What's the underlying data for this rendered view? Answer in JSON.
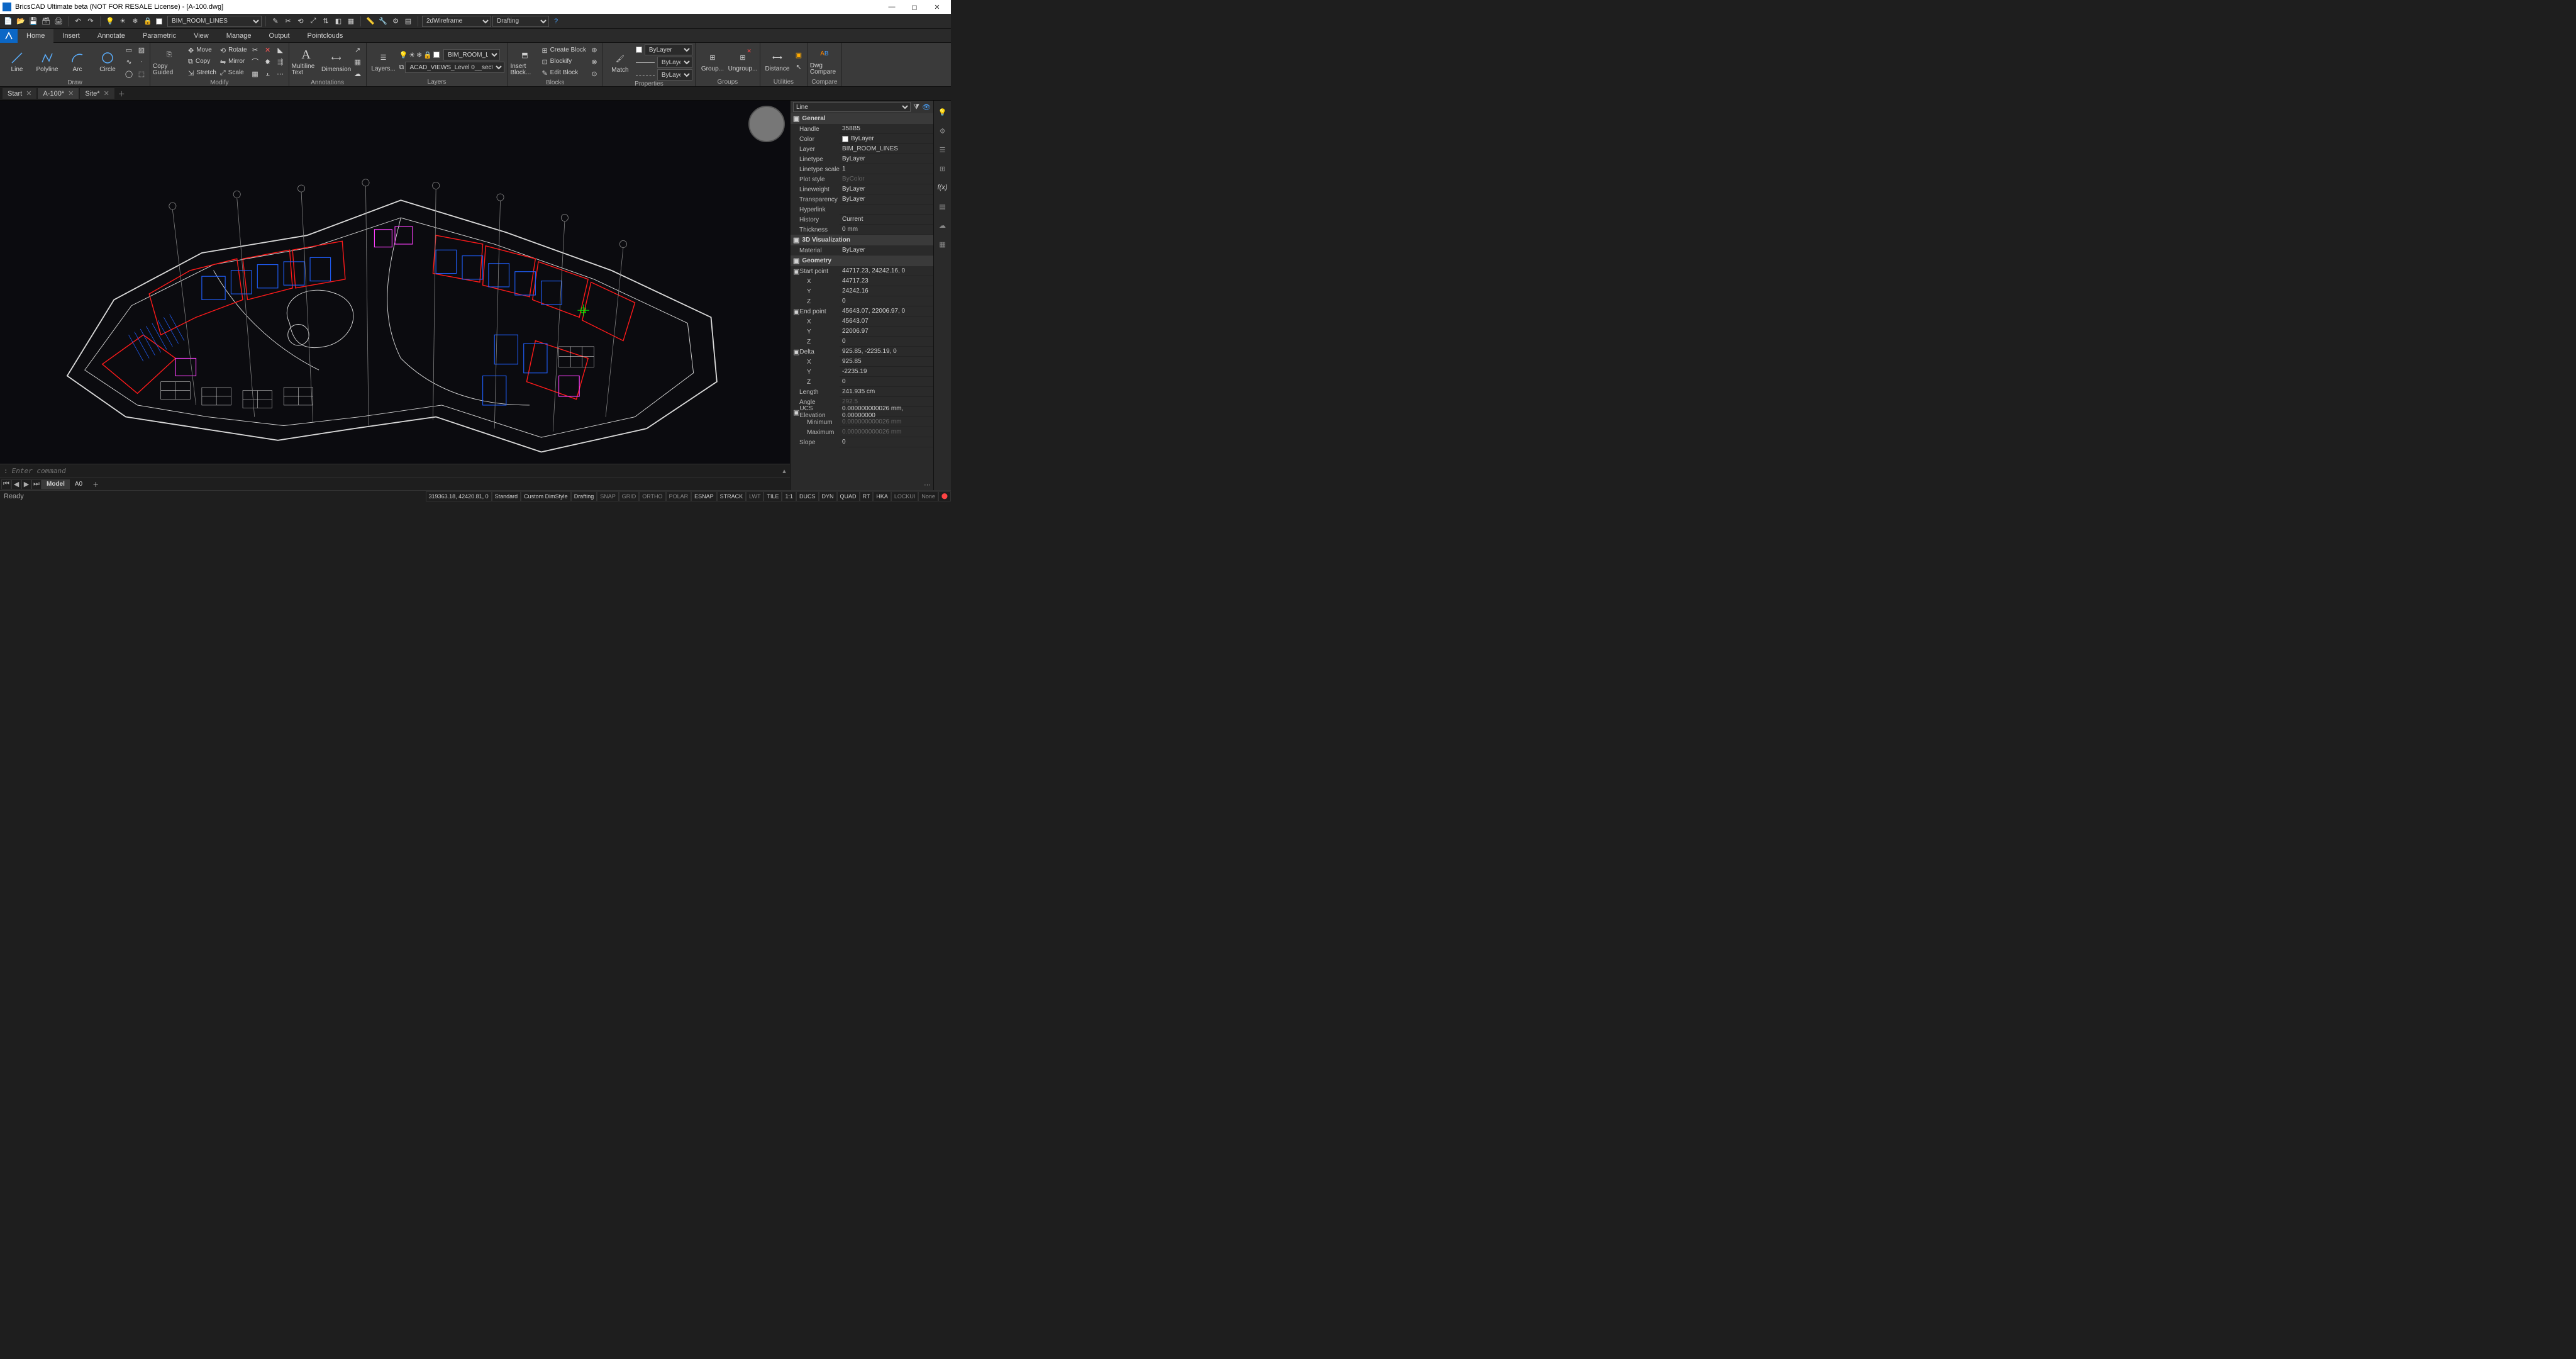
{
  "title": "BricsCAD Ultimate beta (NOT FOR RESALE License) - [A-100.dwg]",
  "qat": {
    "layer_dropdown": "BIM_ROOM_LINES",
    "visual_style": "2dWireframe",
    "workspace": "Drafting"
  },
  "menubar": {
    "tabs": [
      "Home",
      "Insert",
      "Annotate",
      "Parametric",
      "View",
      "Manage",
      "Output",
      "Pointclouds"
    ],
    "active": 0
  },
  "ribbon": {
    "draw": {
      "label": "Draw",
      "line": "Line",
      "polyline": "Polyline",
      "arc": "Arc",
      "circle": "Circle"
    },
    "modify": {
      "label": "Modify",
      "copy": "Copy Guided",
      "move": "Move",
      "rotate": "Rotate",
      "copy2": "Copy",
      "mirror": "Mirror",
      "stretch": "Stretch",
      "scale": "Scale"
    },
    "annot": {
      "label": "Annotations",
      "mtext": "Multiline Text",
      "dim": "Dimension"
    },
    "layers": {
      "label": "Layers",
      "btn": "Layers...",
      "combo1": "BIM_ROOM_L...",
      "combo2": "ACAD_VIEWS_Level 0__secti..."
    },
    "blocks": {
      "label": "Blocks",
      "insert": "Insert Block...",
      "create": "Create Block",
      "blockify": "Blockify",
      "edit": "Edit Block"
    },
    "props": {
      "label": "Properties",
      "match": "Match",
      "bylayer": "ByLayer"
    },
    "groups": {
      "label": "Groups",
      "group": "Group...",
      "ungroup": "Ungroup..."
    },
    "utils": {
      "label": "Utilities",
      "dist": "Distance"
    },
    "compare": {
      "label": "Compare",
      "dwg": "Dwg Compare"
    }
  },
  "doc_tabs": [
    {
      "label": "Start",
      "closable": true,
      "active": false
    },
    {
      "label": "A-100*",
      "closable": true,
      "active": true
    },
    {
      "label": "Site*",
      "closable": true,
      "active": false
    }
  ],
  "cmdline": {
    "prompt": ":",
    "placeholder": "Enter command"
  },
  "layout_tabs": {
    "active": "Model",
    "tabs": [
      "Model",
      "A0"
    ]
  },
  "properties": {
    "type": "Line",
    "sections": [
      {
        "title": "General",
        "rows": [
          {
            "k": "Handle",
            "v": "358B5"
          },
          {
            "k": "Color",
            "v": "ByLayer",
            "swatch": "#ffffff"
          },
          {
            "k": "Layer",
            "v": "BIM_ROOM_LINES"
          },
          {
            "k": "Linetype",
            "v": "ByLayer"
          },
          {
            "k": "Linetype scale",
            "v": "1"
          },
          {
            "k": "Plot style",
            "v": "ByColor",
            "dim": true
          },
          {
            "k": "Lineweight",
            "v": "ByLayer"
          },
          {
            "k": "Transparency",
            "v": "ByLayer"
          },
          {
            "k": "Hyperlink",
            "v": ""
          },
          {
            "k": "History",
            "v": "Current"
          },
          {
            "k": "Thickness",
            "v": "0 mm"
          }
        ]
      },
      {
        "title": "3D Visualization",
        "rows": [
          {
            "k": "Material",
            "v": "ByLayer"
          }
        ]
      },
      {
        "title": "Geometry",
        "rows": [
          {
            "k": "Start point",
            "v": "44717.23, 24242.16, 0",
            "bold": true
          },
          {
            "k": "X",
            "v": "44717.23",
            "indent": true
          },
          {
            "k": "Y",
            "v": "24242.16",
            "indent": true
          },
          {
            "k": "Z",
            "v": "0",
            "indent": true
          },
          {
            "k": "End point",
            "v": "45643.07, 22006.97, 0",
            "bold": true
          },
          {
            "k": "X",
            "v": "45643.07",
            "indent": true
          },
          {
            "k": "Y",
            "v": "22006.97",
            "indent": true
          },
          {
            "k": "Z",
            "v": "0",
            "indent": true
          },
          {
            "k": "Delta",
            "v": "925.85, -2235.19, 0",
            "bold": true
          },
          {
            "k": "X",
            "v": "925.85",
            "indent": true
          },
          {
            "k": "Y",
            "v": "-2235.19",
            "indent": true
          },
          {
            "k": "Z",
            "v": "0",
            "indent": true
          },
          {
            "k": "Length",
            "v": "241.935 cm"
          },
          {
            "k": "Angle",
            "v": "292.5",
            "dim": true
          },
          {
            "k": "UCS Elevation",
            "v": "0.000000000026 mm, 0.00000000",
            "bold": true
          },
          {
            "k": "Minimum",
            "v": "0.000000000026 mm",
            "indent": true,
            "dim": true
          },
          {
            "k": "Maximum",
            "v": "0.000000000026 mm",
            "indent": true,
            "dim": true
          },
          {
            "k": "Slope",
            "v": "0"
          }
        ]
      }
    ]
  },
  "statusbar": {
    "ready": "Ready",
    "coords": "319363.18, 42420.81, 0",
    "std": "Standard",
    "dim": "Custom DimStyle",
    "ws": "Drafting",
    "toggles": [
      "SNAP",
      "GRID",
      "ORTHO",
      "POLAR",
      "ESNAP",
      "STRACK",
      "LWT",
      "TILE",
      "1:1",
      "DUCS",
      "DYN",
      "QUAD",
      "RT",
      "HKA",
      "LOCKUI",
      "None"
    ],
    "toggles_on": [
      4,
      5,
      7,
      8,
      9,
      10,
      11,
      12,
      13
    ]
  },
  "colors": {
    "wall": "#d8d8d8",
    "room": "#ff1a1a",
    "struct": "#2060ff",
    "magenta": "#ff40ff",
    "bg": "#0b0b0f"
  }
}
